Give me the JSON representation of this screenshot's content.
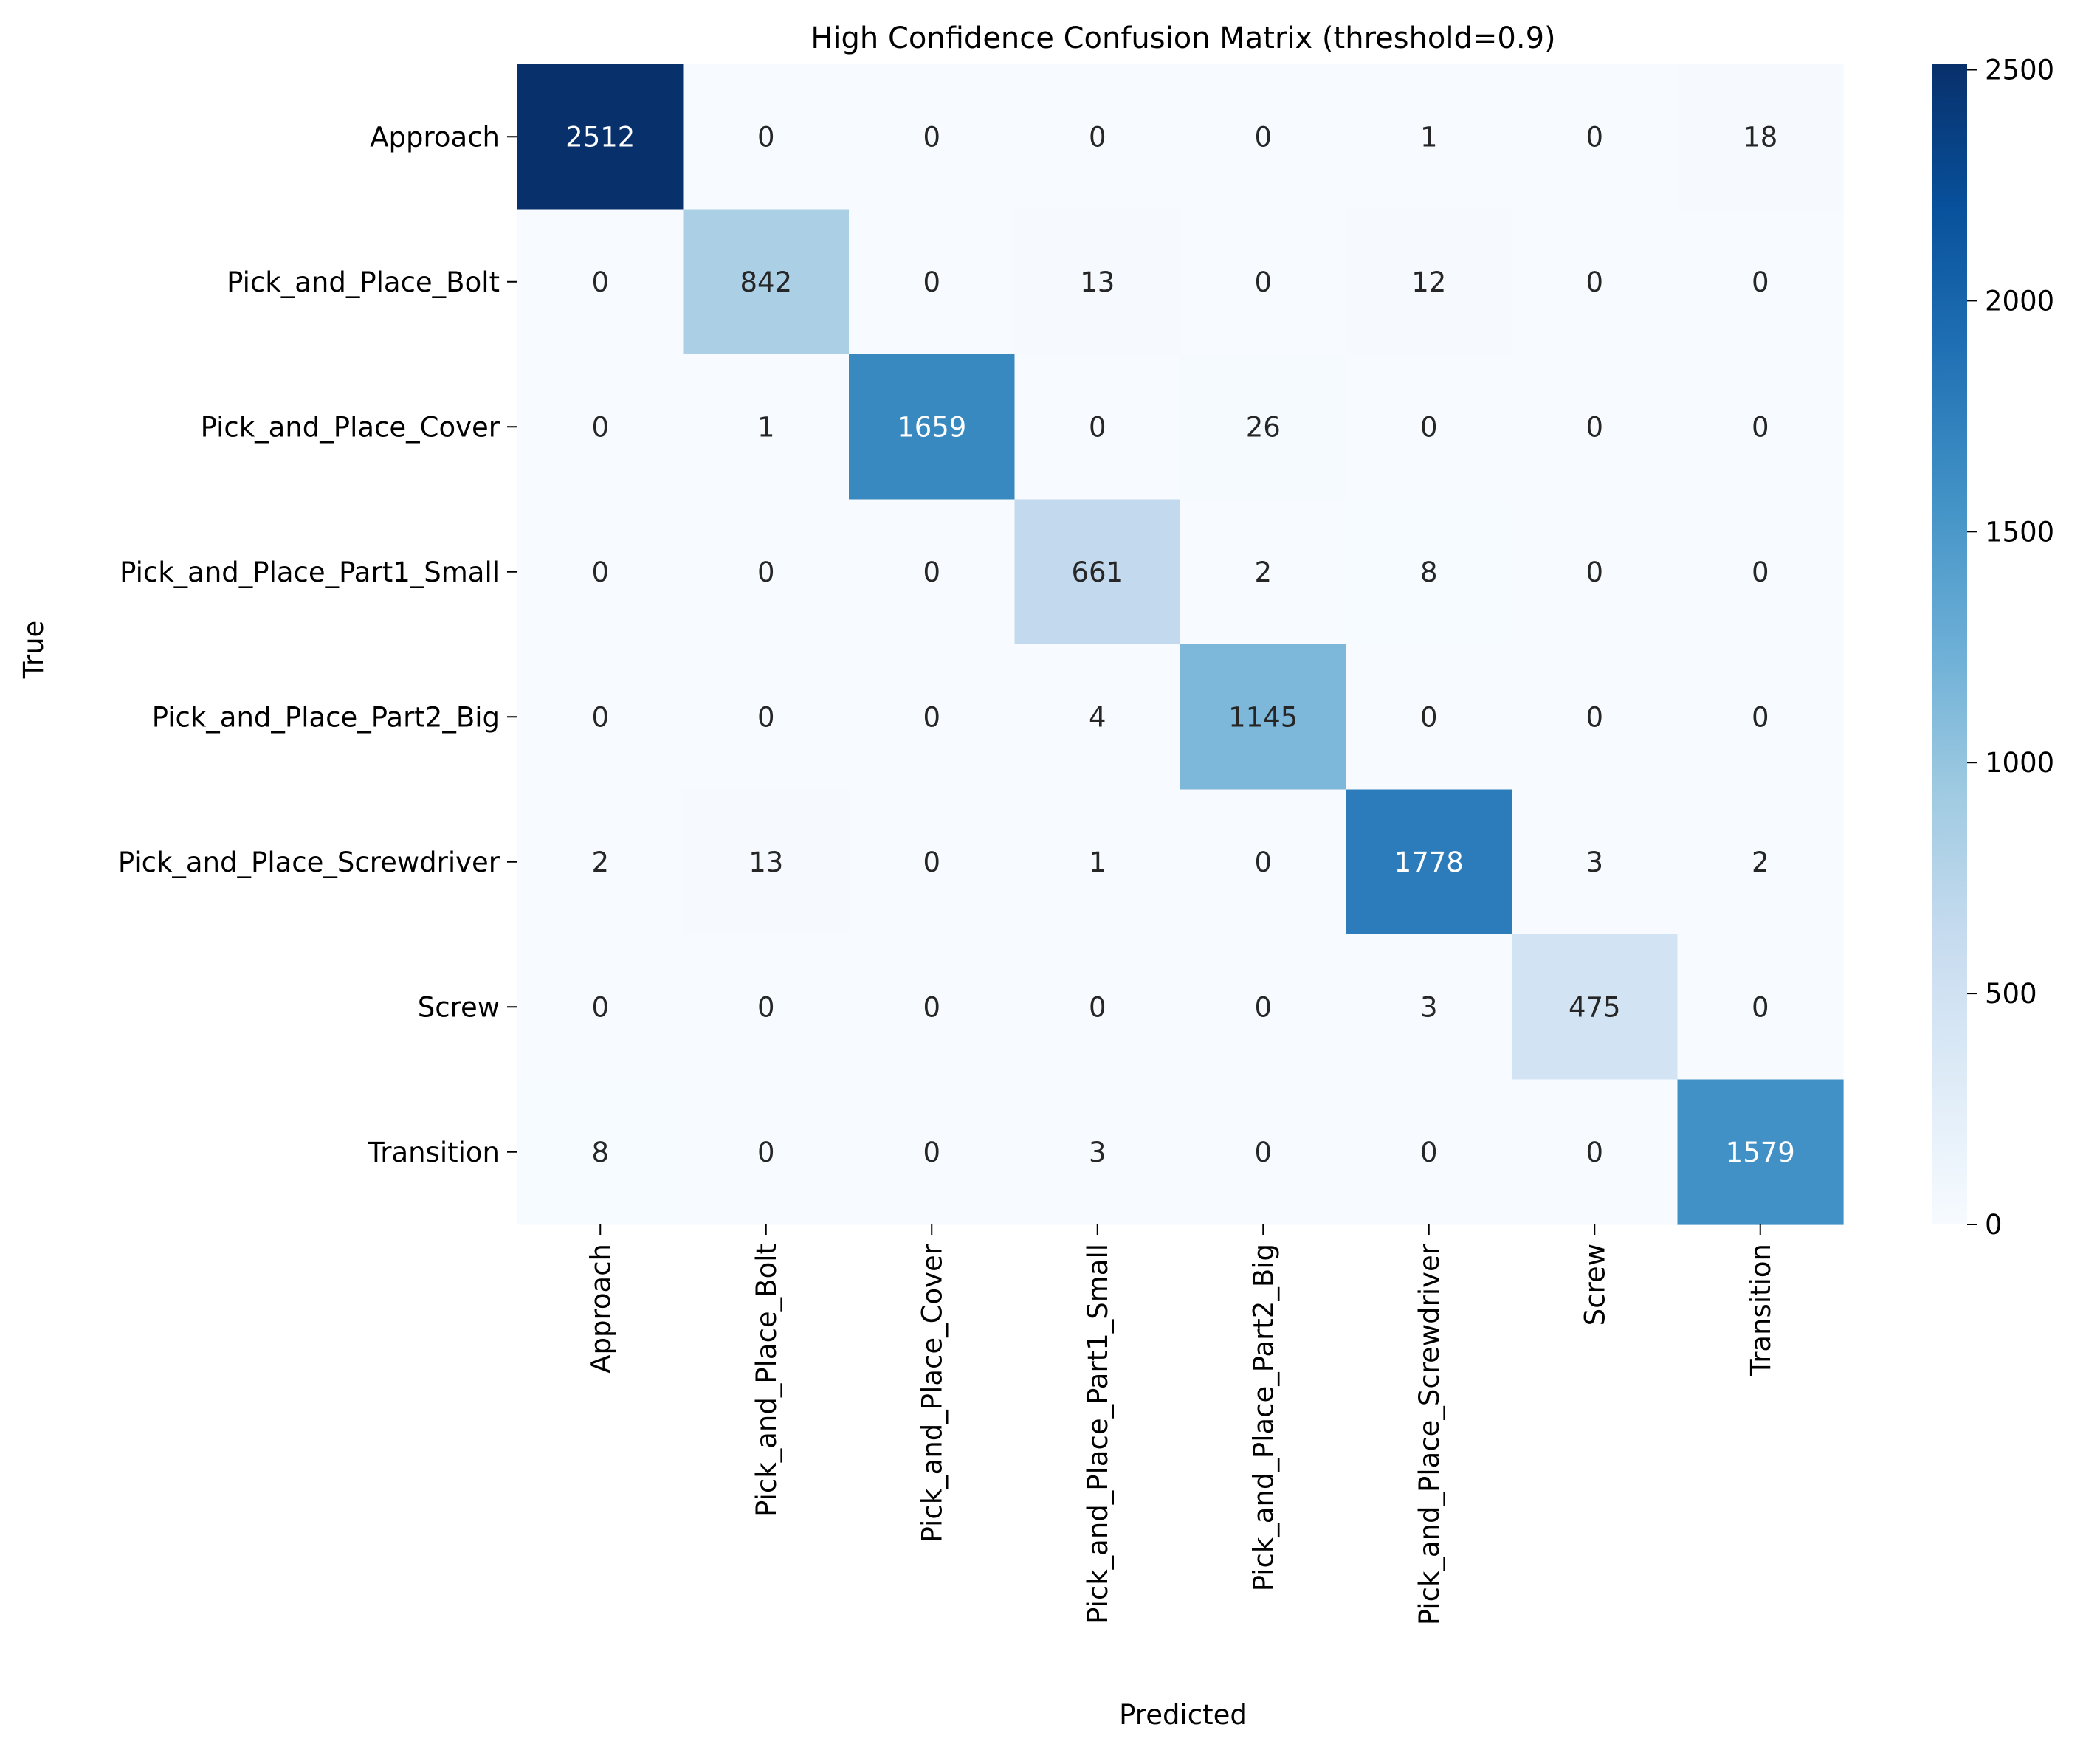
{
  "chart_data": {
    "type": "heatmap",
    "title": "High Confidence Confusion Matrix (threshold=0.9)",
    "xlabel": "Predicted",
    "ylabel": "True",
    "x_categories": [
      "Approach",
      "Pick_and_Place_Bolt",
      "Pick_and_Place_Cover",
      "Pick_and_Place_Part1_Small",
      "Pick_and_Place_Part2_Big",
      "Pick_and_Place_Screwdriver",
      "Screw",
      "Transition"
    ],
    "y_categories": [
      "Approach",
      "Pick_and_Place_Bolt",
      "Pick_and_Place_Cover",
      "Pick_and_Place_Part1_Small",
      "Pick_and_Place_Part2_Big",
      "Pick_and_Place_Screwdriver",
      "Screw",
      "Transition"
    ],
    "values": [
      [
        2512,
        0,
        0,
        0,
        0,
        1,
        0,
        18
      ],
      [
        0,
        842,
        0,
        13,
        0,
        12,
        0,
        0
      ],
      [
        0,
        1,
        1659,
        0,
        26,
        0,
        0,
        0
      ],
      [
        0,
        0,
        0,
        661,
        2,
        8,
        0,
        0
      ],
      [
        0,
        0,
        0,
        4,
        1145,
        0,
        0,
        0
      ],
      [
        2,
        13,
        0,
        1,
        0,
        1778,
        3,
        2
      ],
      [
        0,
        0,
        0,
        0,
        0,
        3,
        475,
        0
      ],
      [
        8,
        0,
        0,
        3,
        0,
        0,
        0,
        1579
      ]
    ],
    "colorscale": "Blues",
    "colorbar": {
      "range": [
        0,
        2512
      ],
      "ticks": [
        0,
        500,
        1000,
        1500,
        2000,
        2500
      ],
      "tick_labels": [
        "0",
        "500",
        "1000",
        "1500",
        "2000",
        "2500"
      ]
    },
    "annotations": "cell values printed in each cell",
    "grid": false,
    "legend": "colorbar right"
  }
}
